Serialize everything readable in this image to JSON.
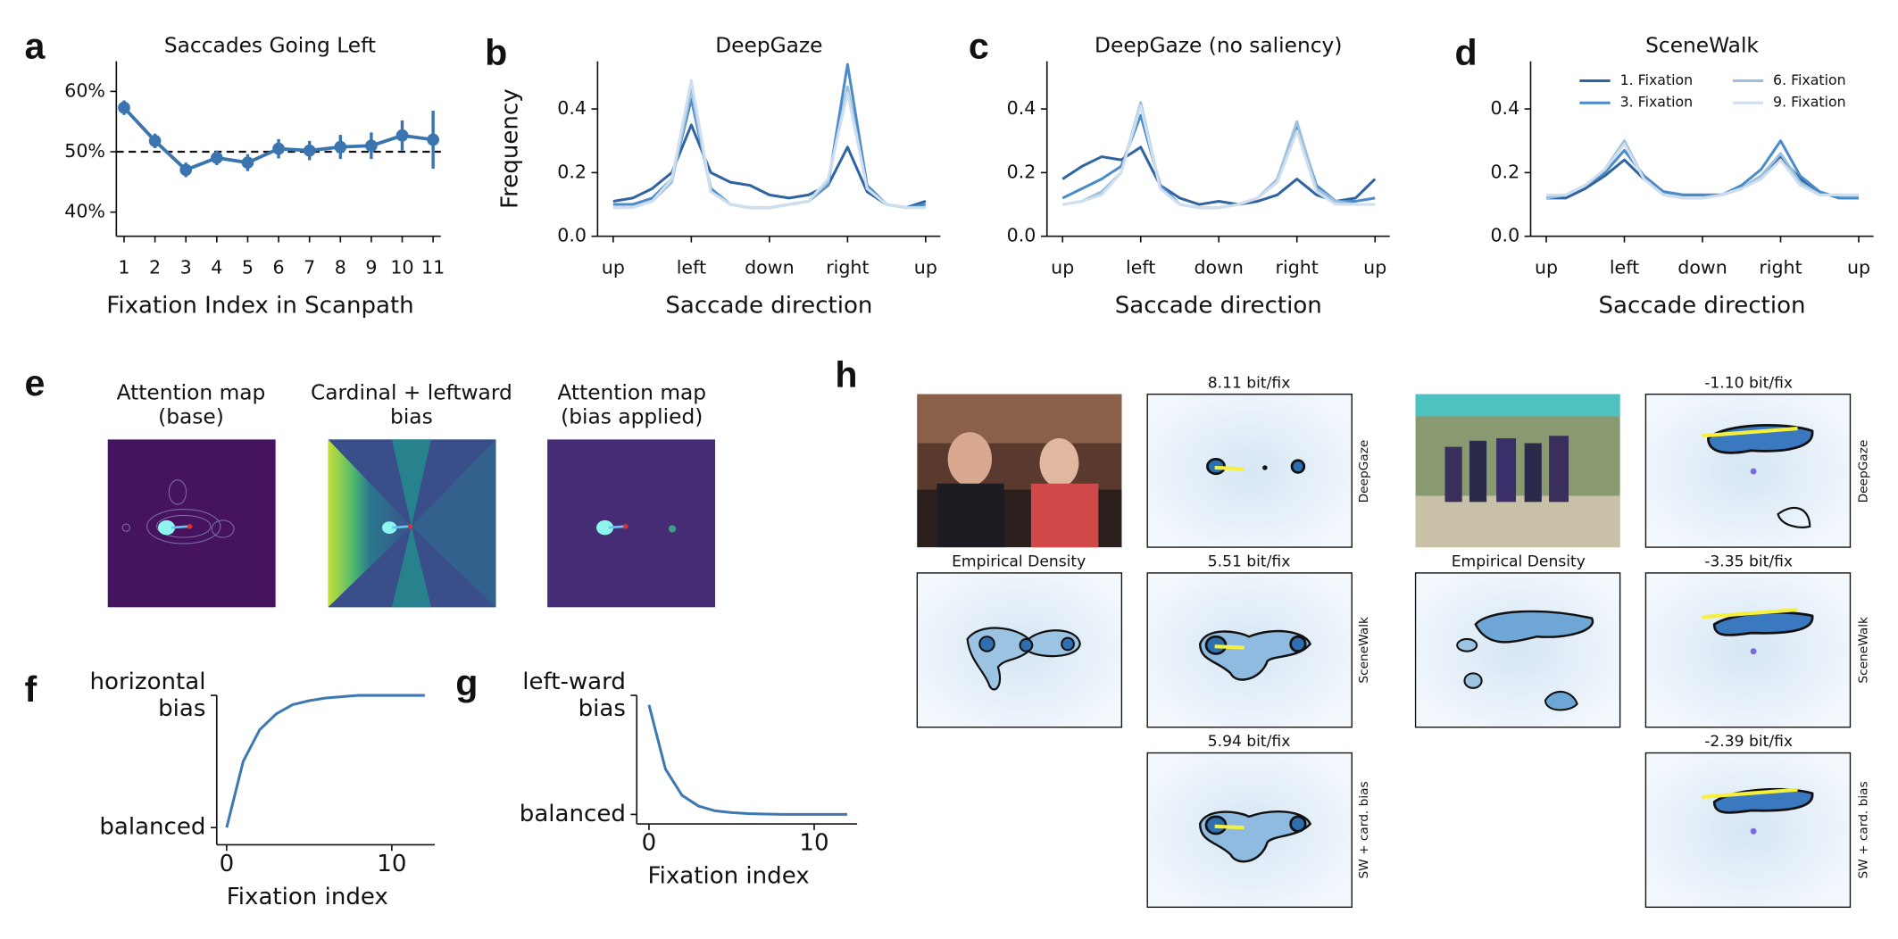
{
  "panel_labels": [
    "a",
    "b",
    "c",
    "d",
    "e",
    "f",
    "g",
    "h"
  ],
  "chart_data": [
    {
      "type": "line",
      "title": "Saccades Going Left",
      "xlabel": "Fixation Index in Scanpath",
      "x": [
        1,
        2,
        3,
        4,
        5,
        6,
        7,
        8,
        9,
        10,
        11
      ],
      "xlim": [
        0.75,
        11.25
      ],
      "xticks": [
        1,
        2,
        3,
        4,
        5,
        6,
        7,
        8,
        9,
        10,
        11
      ],
      "ylim": [
        36,
        65
      ],
      "yticks": [
        {
          "value": 40,
          "label": "40%"
        },
        {
          "value": 50,
          "label": "50%"
        },
        {
          "value": 60,
          "label": "60%"
        }
      ],
      "hline": 50,
      "series": [
        {
          "color": "#3a75b0",
          "values": [
            57.3,
            51.8,
            47,
            49,
            48.2,
            50.5,
            50.2,
            50.8,
            51,
            52.7,
            52
          ],
          "errors": [
            1.2,
            1.2,
            1.2,
            1.2,
            1.4,
            1.6,
            1.6,
            2,
            2.2,
            2.5,
            4.8
          ]
        }
      ]
    },
    {
      "type": "line",
      "title": "DeepGaze",
      "xlabel": "Saccade direction",
      "ylabel": "Frequency",
      "x": [
        0,
        22.5,
        45,
        67.5,
        90,
        112.5,
        135,
        157.5,
        180,
        202.5,
        225,
        247.5,
        270,
        292.5,
        315,
        337.5,
        360
      ],
      "xlim": [
        -18,
        377
      ],
      "xticks": [
        {
          "value": 0,
          "label": "up"
        },
        {
          "value": 90,
          "label": "left"
        },
        {
          "value": 180,
          "label": "down"
        },
        {
          "value": 270,
          "label": "right"
        },
        {
          "value": 360,
          "label": "up"
        }
      ],
      "ylim": [
        0,
        0.55
      ],
      "yticks": [
        {
          "value": 0,
          "label": "0.0"
        },
        0.2,
        0.4
      ],
      "series": [
        {
          "color": "#2f64a0",
          "values": [
            0.11,
            0.12,
            0.15,
            0.2,
            0.35,
            0.2,
            0.17,
            0.16,
            0.13,
            0.12,
            0.13,
            0.16,
            0.28,
            0.14,
            0.1,
            0.09,
            0.11
          ]
        },
        {
          "color": "#4b8bc8",
          "values": [
            0.1,
            0.1,
            0.12,
            0.18,
            0.43,
            0.15,
            0.1,
            0.09,
            0.09,
            0.1,
            0.11,
            0.16,
            0.54,
            0.16,
            0.1,
            0.09,
            0.1
          ]
        },
        {
          "color": "#9bbfdc",
          "values": [
            0.09,
            0.09,
            0.11,
            0.17,
            0.46,
            0.14,
            0.1,
            0.09,
            0.09,
            0.1,
            0.11,
            0.17,
            0.47,
            0.15,
            0.1,
            0.09,
            0.09
          ]
        },
        {
          "color": "#cfdff0",
          "values": [
            0.09,
            0.09,
            0.11,
            0.18,
            0.49,
            0.14,
            0.1,
            0.09,
            0.09,
            0.1,
            0.11,
            0.18,
            0.45,
            0.15,
            0.1,
            0.09,
            0.09
          ]
        }
      ]
    },
    {
      "type": "line",
      "title": "DeepGaze (no saliency)",
      "xlabel": "Saccade direction",
      "x": [
        0,
        22.5,
        45,
        67.5,
        90,
        112.5,
        135,
        157.5,
        180,
        202.5,
        225,
        247.5,
        270,
        292.5,
        315,
        337.5,
        360
      ],
      "xlim": [
        -18,
        377
      ],
      "xticks": [
        {
          "value": 0,
          "label": "up"
        },
        {
          "value": 90,
          "label": "left"
        },
        {
          "value": 180,
          "label": "down"
        },
        {
          "value": 270,
          "label": "right"
        },
        {
          "value": 360,
          "label": "up"
        }
      ],
      "ylim": [
        0,
        0.55
      ],
      "yticks": [
        {
          "value": 0,
          "label": "0.0"
        },
        0.2,
        0.4
      ],
      "series": [
        {
          "color": "#2f64a0",
          "values": [
            0.18,
            0.22,
            0.25,
            0.24,
            0.28,
            0.16,
            0.12,
            0.1,
            0.11,
            0.1,
            0.11,
            0.13,
            0.18,
            0.13,
            0.11,
            0.12,
            0.18
          ]
        },
        {
          "color": "#4b8bc8",
          "values": [
            0.12,
            0.15,
            0.18,
            0.22,
            0.38,
            0.16,
            0.1,
            0.09,
            0.09,
            0.1,
            0.12,
            0.18,
            0.35,
            0.16,
            0.11,
            0.11,
            0.12
          ]
        },
        {
          "color": "#9bbfdc",
          "values": [
            0.1,
            0.11,
            0.14,
            0.2,
            0.42,
            0.15,
            0.1,
            0.09,
            0.09,
            0.1,
            0.12,
            0.18,
            0.36,
            0.15,
            0.11,
            0.1,
            0.1
          ]
        },
        {
          "color": "#cfdff0",
          "values": [
            0.1,
            0.11,
            0.13,
            0.2,
            0.41,
            0.15,
            0.1,
            0.09,
            0.09,
            0.1,
            0.12,
            0.17,
            0.33,
            0.14,
            0.1,
            0.1,
            0.1
          ]
        }
      ]
    },
    {
      "type": "line",
      "title": "SceneWalk",
      "xlabel": "Saccade direction",
      "legend": "upper right",
      "x": [
        0,
        22.5,
        45,
        67.5,
        90,
        112.5,
        135,
        157.5,
        180,
        202.5,
        225,
        247.5,
        270,
        292.5,
        315,
        337.5,
        360
      ],
      "xlim": [
        -18,
        377
      ],
      "xticks": [
        {
          "value": 0,
          "label": "up"
        },
        {
          "value": 90,
          "label": "left"
        },
        {
          "value": 180,
          "label": "down"
        },
        {
          "value": 270,
          "label": "right"
        },
        {
          "value": 360,
          "label": "up"
        }
      ],
      "ylim": [
        0,
        0.55
      ],
      "yticks": [
        {
          "value": 0,
          "label": "0.0"
        },
        0.2,
        0.4
      ],
      "series": [
        {
          "name": "1. Fixation",
          "color": "#2f64a0",
          "values": [
            0.12,
            0.12,
            0.15,
            0.19,
            0.24,
            0.18,
            0.14,
            0.13,
            0.13,
            0.13,
            0.15,
            0.19,
            0.25,
            0.18,
            0.14,
            0.12,
            0.12
          ]
        },
        {
          "name": "3. Fixation",
          "color": "#4b8bc8",
          "values": [
            0.12,
            0.13,
            0.16,
            0.2,
            0.27,
            0.19,
            0.14,
            0.13,
            0.13,
            0.13,
            0.16,
            0.21,
            0.3,
            0.19,
            0.14,
            0.12,
            0.12
          ]
        },
        {
          "name": "6. Fixation",
          "color": "#9bbfdc",
          "values": [
            0.12,
            0.13,
            0.16,
            0.21,
            0.3,
            0.18,
            0.13,
            0.12,
            0.12,
            0.13,
            0.15,
            0.19,
            0.26,
            0.17,
            0.13,
            0.13,
            0.13
          ]
        },
        {
          "name": "9. Fixation",
          "color": "#cfdff0",
          "values": [
            0.13,
            0.13,
            0.16,
            0.21,
            0.29,
            0.18,
            0.13,
            0.12,
            0.12,
            0.13,
            0.15,
            0.18,
            0.24,
            0.16,
            0.13,
            0.13,
            0.13
          ]
        }
      ]
    },
    {
      "type": "line",
      "xlabel": "Fixation index",
      "x": [
        0,
        1,
        2,
        3,
        4,
        5,
        6,
        7,
        8,
        9,
        10,
        11,
        12
      ],
      "xlim": [
        -0.6,
        12.6
      ],
      "xticks": [
        0,
        10
      ],
      "ylim": [
        -0.13,
        1.0
      ],
      "yticks": [
        {
          "value": 0,
          "label": "balanced"
        },
        {
          "value": 1,
          "label": "horizontal\nbias"
        }
      ],
      "series": [
        {
          "color": "#3d78b0",
          "values": [
            0,
            0.5,
            0.74,
            0.86,
            0.93,
            0.96,
            0.98,
            0.99,
            1,
            1,
            1,
            1,
            1
          ]
        }
      ]
    },
    {
      "type": "line",
      "xlabel": "Fixation index",
      "x": [
        0,
        1,
        2,
        3,
        4,
        5,
        6,
        7,
        8,
        9,
        10,
        11,
        12
      ],
      "xlim": [
        -0.74,
        12.6
      ],
      "xticks": [
        0,
        10
      ],
      "ylim": [
        -0.08,
        1.0
      ],
      "yticks": [
        {
          "value": 0,
          "label": "balanced"
        },
        {
          "value": 1,
          "label": "left-ward\nbias"
        }
      ],
      "series": [
        {
          "color": "#3d78b0",
          "values": [
            0.92,
            0.38,
            0.16,
            0.07,
            0.03,
            0.015,
            0.007,
            0.003,
            0,
            0,
            0,
            0,
            0
          ]
        }
      ]
    }
  ],
  "panel_e": {
    "titles": [
      "Attention map\n(base)",
      "Cardinal + leftward\nbias",
      "Attention map\n(bias applied)"
    ]
  },
  "panel_h": {
    "columns": [
      {
        "empirical": "Empirical Density",
        "scores": [
          "8.11 bit/fix",
          "5.51 bit/fix",
          "5.94 bit/fix"
        ],
        "models": [
          "DeepGaze",
          "SceneWalk",
          "SW + card. bias"
        ]
      },
      {
        "empirical": "Empirical Density",
        "scores": [
          "-1.10 bit/fix",
          "-3.35 bit/fix",
          "-2.39 bit/fix"
        ],
        "models": [
          "DeepGaze",
          "SceneWalk",
          "SW + card. bias"
        ]
      }
    ]
  }
}
